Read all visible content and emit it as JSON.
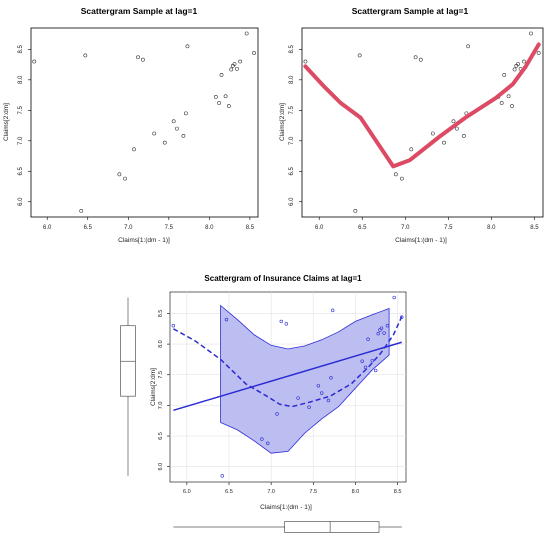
{
  "chart_data": [
    {
      "type": "scatter",
      "title": "Scattergram Sample at lag=1",
      "xlabel": "Claims[1:(dm - 1)]",
      "ylabel": "Claims[2:dm]",
      "xlim": [
        5.8,
        8.6
      ],
      "ylim": [
        5.75,
        8.85
      ],
      "xticks": [
        "6.0",
        "6.5",
        "7.0",
        "7.5",
        "8.0",
        "8.5"
      ],
      "yticks": [
        "6.0",
        "6.5",
        "7.0",
        "7.5",
        "8.0",
        "8.5"
      ],
      "points": {
        "x": [
          5.84,
          6.42,
          6.47,
          6.89,
          6.96,
          7.07,
          7.12,
          7.18,
          7.32,
          7.45,
          7.56,
          7.6,
          7.68,
          7.71,
          7.73,
          8.08,
          8.12,
          8.15,
          8.2,
          8.24,
          8.27,
          8.29,
          8.31,
          8.34,
          8.38,
          8.46,
          8.55
        ],
        "y": [
          8.3,
          5.85,
          8.4,
          6.45,
          6.38,
          6.86,
          8.37,
          8.33,
          7.12,
          6.97,
          7.32,
          7.2,
          7.08,
          7.45,
          8.55,
          7.72,
          7.62,
          8.08,
          7.73,
          7.57,
          8.17,
          8.23,
          8.26,
          8.18,
          8.3,
          8.76,
          8.44
        ]
      }
    },
    {
      "type": "scatter",
      "title": "Scattergram Sample at lag=1",
      "xlabel": "Claims[1:(dm - 1)]",
      "ylabel": "Claims[2:dm]",
      "xlim": [
        5.8,
        8.6
      ],
      "ylim": [
        5.75,
        8.85
      ],
      "xticks": [
        "6.0",
        "6.5",
        "7.0",
        "7.5",
        "8.0",
        "8.5"
      ],
      "yticks": [
        "6.0",
        "6.5",
        "7.0",
        "7.5",
        "8.0",
        "8.5"
      ],
      "points": {
        "x": [
          5.84,
          6.42,
          6.47,
          6.89,
          6.96,
          7.07,
          7.12,
          7.18,
          7.32,
          7.45,
          7.56,
          7.6,
          7.68,
          7.71,
          7.73,
          8.08,
          8.12,
          8.15,
          8.2,
          8.24,
          8.27,
          8.29,
          8.31,
          8.34,
          8.38,
          8.46,
          8.55
        ],
        "y": [
          8.3,
          5.85,
          8.4,
          6.45,
          6.38,
          6.86,
          8.37,
          8.33,
          7.12,
          6.97,
          7.32,
          7.2,
          7.08,
          7.45,
          8.55,
          7.72,
          7.62,
          8.08,
          7.73,
          7.57,
          8.17,
          8.23,
          8.26,
          8.18,
          8.3,
          8.76,
          8.44
        ]
      },
      "smooth_line": {
        "color": "#dc4a63",
        "x": [
          5.84,
          6.05,
          6.25,
          6.48,
          6.86,
          7.05,
          7.4,
          7.7,
          8.05,
          8.25,
          8.4,
          8.55
        ],
        "y": [
          8.22,
          7.9,
          7.62,
          7.38,
          6.58,
          6.68,
          7.07,
          7.38,
          7.7,
          7.93,
          8.22,
          8.58
        ]
      }
    },
    {
      "type": "scatter",
      "title": "Scattergram of Insurance Claims at lag=1",
      "xlabel": "Claims[1:(dm - 1)]",
      "ylabel": "Claims[2:dm]",
      "xlim": [
        5.8,
        8.6
      ],
      "ylim": [
        5.75,
        8.85
      ],
      "xticks": [
        "6.0",
        "6.5",
        "7.0",
        "7.5",
        "8.0",
        "8.5"
      ],
      "yticks": [
        "6.0",
        "6.5",
        "7.0",
        "7.5",
        "8.0",
        "8.5"
      ],
      "grid": true,
      "color": "#2b2bd6",
      "band_color": "#bcbdf0",
      "points": {
        "x": [
          5.84,
          6.42,
          6.47,
          6.89,
          6.96,
          7.07,
          7.12,
          7.18,
          7.32,
          7.45,
          7.56,
          7.6,
          7.68,
          7.71,
          7.73,
          8.08,
          8.12,
          8.15,
          8.2,
          8.24,
          8.27,
          8.29,
          8.31,
          8.34,
          8.38,
          8.46,
          8.55
        ],
        "y": [
          8.3,
          5.85,
          8.4,
          6.45,
          6.38,
          6.86,
          8.37,
          8.33,
          7.12,
          6.97,
          7.32,
          7.2,
          7.08,
          7.45,
          8.55,
          7.72,
          7.62,
          8.08,
          7.73,
          7.57,
          8.17,
          8.23,
          8.26,
          8.18,
          8.3,
          8.76,
          8.44
        ]
      },
      "regression_line": {
        "x": [
          5.84,
          8.55
        ],
        "y": [
          6.92,
          8.03
        ]
      },
      "smooth_line": {
        "x": [
          5.84,
          6.1,
          6.4,
          6.7,
          6.95,
          7.1,
          7.25,
          7.45,
          7.7,
          7.95,
          8.15,
          8.3,
          8.45,
          8.55
        ],
        "y": [
          8.25,
          8.05,
          7.75,
          7.35,
          7.15,
          7.02,
          6.98,
          7.05,
          7.15,
          7.35,
          7.62,
          7.85,
          8.15,
          8.45
        ]
      },
      "confidence_band": {
        "x": [
          6.4,
          6.6,
          6.8,
          7.0,
          7.2,
          7.4,
          7.6,
          7.8,
          8.0,
          8.2,
          8.4
        ],
        "upper": [
          8.63,
          8.4,
          8.15,
          7.98,
          7.92,
          7.97,
          8.07,
          8.2,
          8.37,
          8.48,
          8.58
        ],
        "lower": [
          6.72,
          6.6,
          6.42,
          6.22,
          6.25,
          6.55,
          6.78,
          6.98,
          7.28,
          7.58,
          7.82
        ]
      },
      "y_boxplot": {
        "min": 5.85,
        "q1": 7.15,
        "median": 7.72,
        "q3": 8.3,
        "max": 8.76
      },
      "x_boxplot": {
        "min": 5.84,
        "q1": 7.16,
        "median": 7.7,
        "q3": 8.28,
        "max": 8.55
      }
    }
  ]
}
